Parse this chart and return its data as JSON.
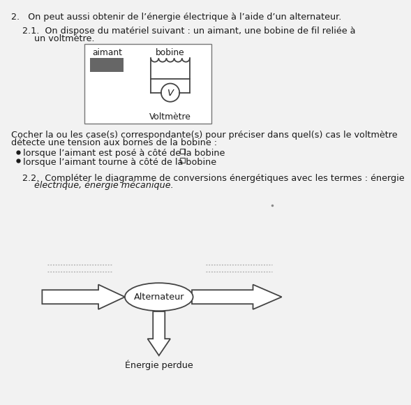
{
  "bg_color": "#f2f2f2",
  "title_line": "2.   On peut aussi obtenir de l’énergie électrique à l’aide d’un alternateur.",
  "line21a": "2.1.  On dispose du matériel suivant : un aimant, une bobine de fil reliée à",
  "line21b": "un voltmètre.",
  "cocher_a": "Cocher la ou les case(s) correspondante(s) pour préciser dans quel(s) cas le voltmètre",
  "cocher_b": "détecte une tension aux bornes de la bobine :",
  "bullet1": "lorsque l’aimant est posé à côté de la bobine",
  "bullet2": "lorsque l’aimant tourne à côté de la bobine",
  "line22a": "2.2.  Compléter le diagramme de conversions énergétiques avec les termes : énergie",
  "line22b": "électrique, énergie mécanique.",
  "aimant_label": "aimant",
  "bobine_label": "bobine",
  "voltmetre_label": "Voltmètre",
  "alternateur_label": "Alternateur",
  "energie_perdue": "Énergie perdue",
  "text_color": "#1a1a1a",
  "edge_color": "#444444",
  "mag_color": "#666666"
}
